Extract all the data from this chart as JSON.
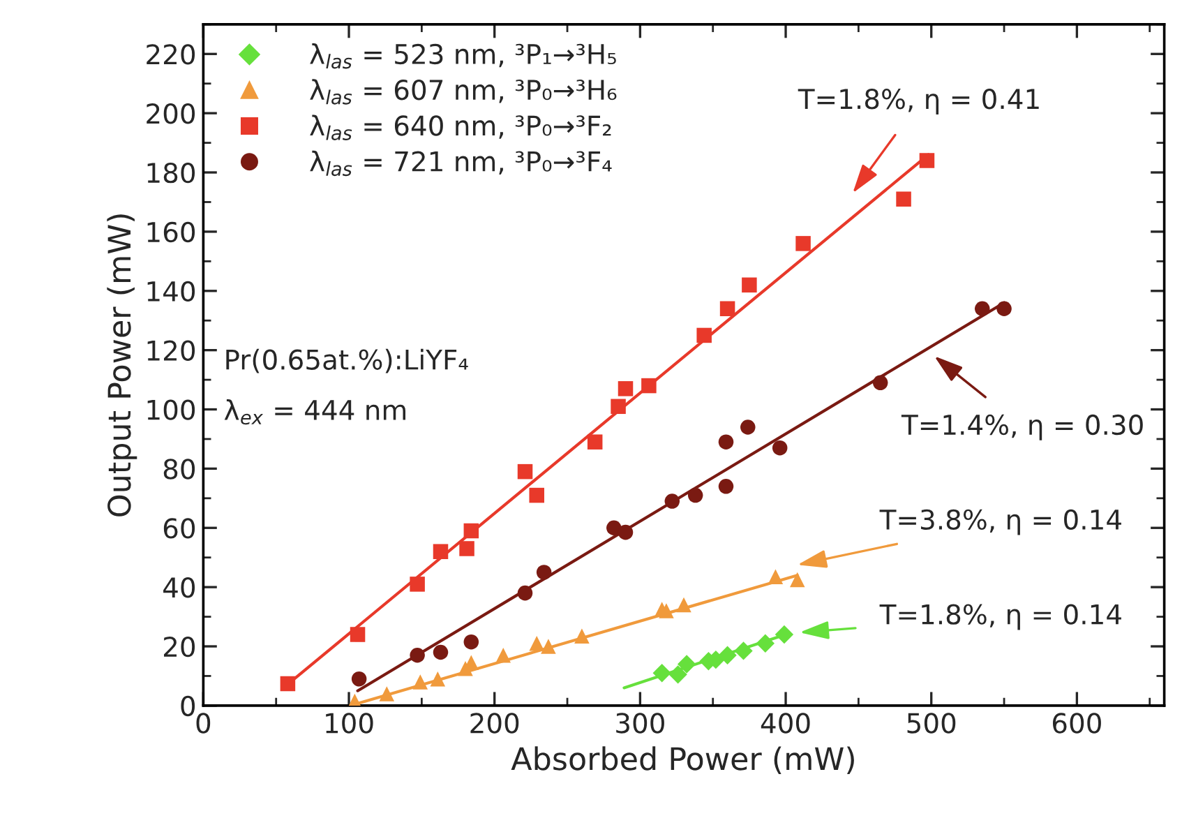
{
  "chart_data": {
    "type": "scatter",
    "xlabel": "Absorbed Power (mW)",
    "ylabel": "Output Power (mW)",
    "xlim": [
      0,
      660
    ],
    "ylim": [
      0,
      230
    ],
    "xticks": [
      0,
      100,
      200,
      300,
      400,
      500,
      600
    ],
    "yticks": [
      0,
      20,
      40,
      60,
      80,
      100,
      120,
      140,
      160,
      180,
      200,
      220
    ],
    "grid": false,
    "legend": "top left",
    "series": [
      {
        "marker": "diamond",
        "name": "λ$_{las}$ = 523 nm, ³P₁→³H₅",
        "color": "#66e03c",
        "x": [
          315,
          326,
          332,
          347,
          352,
          360,
          371,
          386,
          399
        ],
        "values": [
          11,
          10.5,
          14,
          15,
          15.5,
          17,
          18.5,
          21,
          24
        ]
      },
      {
        "marker": "triangle",
        "name": "λ$_{las}$ = 607 nm, ³P₀→³H₆",
        "color": "#f09a3c",
        "x": [
          104,
          126,
          149,
          161,
          180,
          184,
          206,
          229,
          237,
          260,
          315,
          318,
          330,
          393,
          408
        ],
        "values": [
          1.5,
          4,
          8,
          9,
          12.5,
          14.5,
          17,
          21,
          20,
          23.5,
          32.5,
          32,
          34,
          43.5,
          42.5
        ]
      },
      {
        "marker": "square",
        "name": "λ$_{las}$ = 640 nm, ³P₀→³F₂",
        "color": "#e8392a",
        "x": [
          58,
          106,
          147,
          163,
          181,
          184,
          221,
          229,
          269,
          285,
          290,
          306,
          344,
          360,
          375,
          412,
          481,
          497
        ],
        "values": [
          7.4,
          24,
          41,
          52,
          53,
          59,
          79,
          71,
          89,
          101,
          107,
          108,
          125,
          134,
          142,
          156,
          171,
          184
        ]
      },
      {
        "marker": "circle",
        "name": "λ$_{las}$ = 721 nm, ³P₀→³F₄",
        "color": "#7a1a12",
        "x": [
          107,
          147,
          163,
          184,
          221,
          234,
          282,
          290,
          322,
          338,
          359,
          359,
          374,
          396,
          465,
          535,
          550
        ],
        "values": [
          9,
          17,
          18,
          21.5,
          38,
          45,
          60,
          58.5,
          69,
          71,
          74,
          89,
          94,
          87,
          109,
          134,
          134
        ]
      },
      {
        "type": "line",
        "color": "#66e03c",
        "x": [
          289,
          400
        ],
        "values": [
          6,
          24
        ]
      },
      {
        "type": "line",
        "color": "#f09a3c",
        "x": [
          101,
          408
        ],
        "values": [
          0,
          44
        ]
      },
      {
        "type": "line",
        "color": "#e8392a",
        "x": [
          60,
          498
        ],
        "values": [
          8,
          186
        ]
      },
      {
        "type": "line",
        "color": "#7a1a12",
        "x": [
          106,
          550
        ],
        "values": [
          5,
          136
        ]
      }
    ],
    "annotations": [
      "Pr(0.65at.%):LiYF₄",
      "λ$_{ex}$ = 444 nm",
      "T=1.8%, η = 0.41",
      "T=1.4%, η = 0.30",
      "T=3.8%, η = 0.14",
      "T=1.8%, η = 0.14"
    ]
  }
}
